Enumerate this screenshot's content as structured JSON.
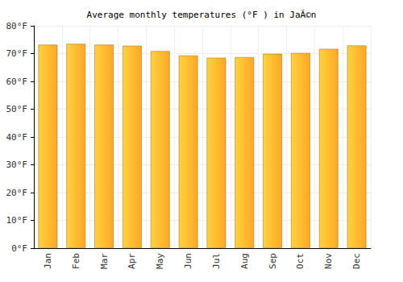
{
  "chart_data": {
    "type": "bar",
    "title": "Average monthly temperatures (°F ) in JaÃ©n",
    "categories": [
      "Jan",
      "Feb",
      "Mar",
      "Apr",
      "May",
      "Jun",
      "Jul",
      "Aug",
      "Sep",
      "Oct",
      "Nov",
      "Dec"
    ],
    "values": [
      73.2,
      73.5,
      73.2,
      72.8,
      70.9,
      69.3,
      68.5,
      68.7,
      69.9,
      70.2,
      71.7,
      72.9
    ],
    "color": "#ffa726",
    "ylim": [
      0,
      80
    ],
    "yticks": [
      {
        "value": 0,
        "label": "0°F"
      },
      {
        "value": 10,
        "label": "10°F"
      },
      {
        "value": 20,
        "label": "20°F"
      },
      {
        "value": 30,
        "label": "30°F"
      },
      {
        "value": 40,
        "label": "40°F"
      },
      {
        "value": 50,
        "label": "50°F"
      },
      {
        "value": 60,
        "label": "60°F"
      },
      {
        "value": 70,
        "label": "70°F"
      },
      {
        "value": 80,
        "label": "80°F"
      }
    ],
    "grid": true
  }
}
